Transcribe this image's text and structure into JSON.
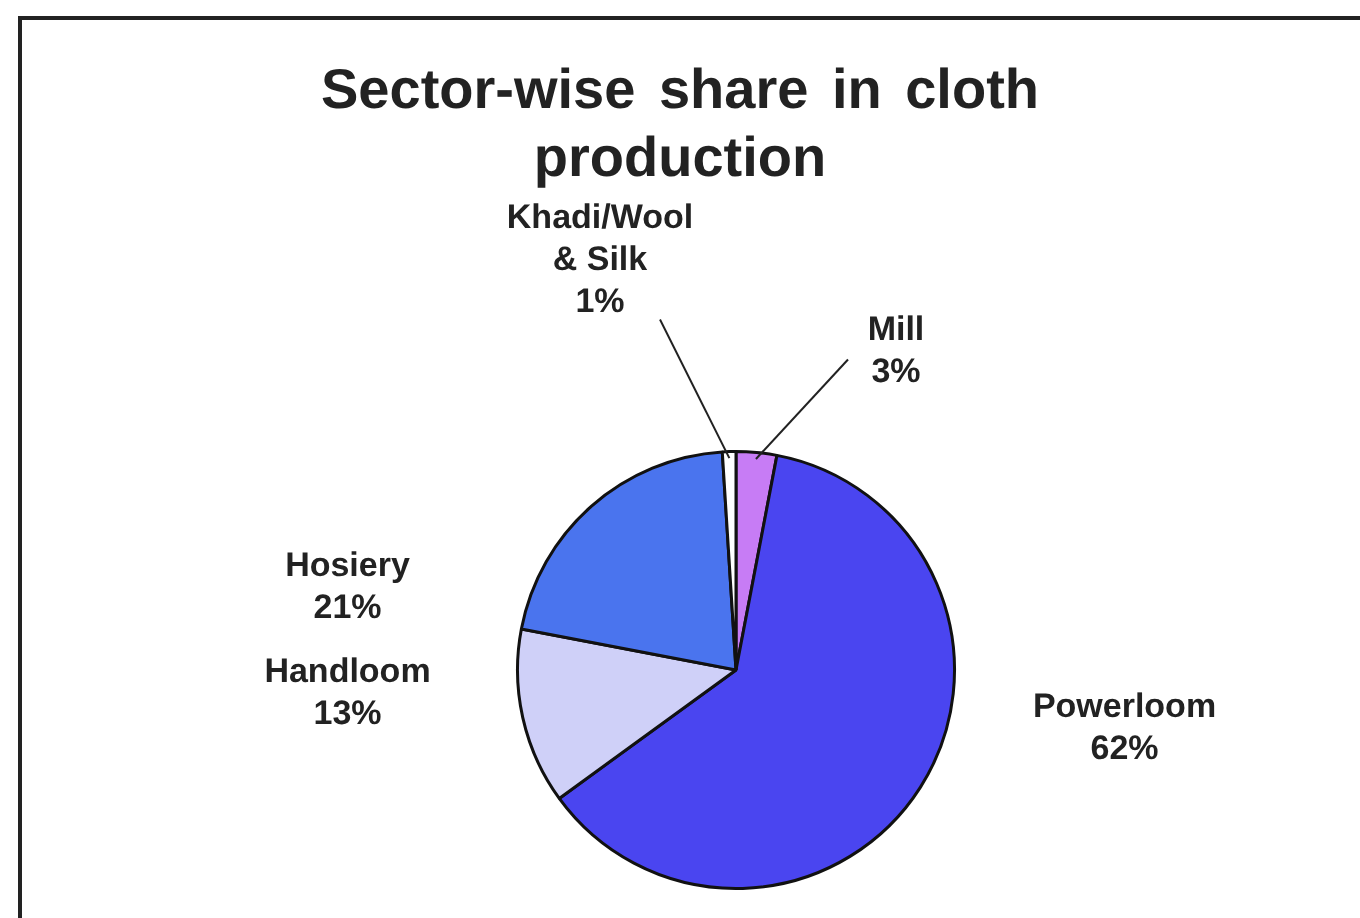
{
  "chart_data": {
    "type": "pie",
    "title": "Sector-wise share in cloth production",
    "categories": [
      "Mill",
      "Powerloom",
      "Handloom",
      "Hosiery",
      "Khadi/Wool & Silk"
    ],
    "values": [
      3,
      62,
      13,
      21,
      1
    ],
    "colors": [
      "#c77cf5",
      "#4a45f0",
      "#cfd0f8",
      "#4a74ee",
      "#ffffff"
    ],
    "value_labels": [
      "3%",
      "62%",
      "13%",
      "21%",
      "1%"
    ]
  }
}
